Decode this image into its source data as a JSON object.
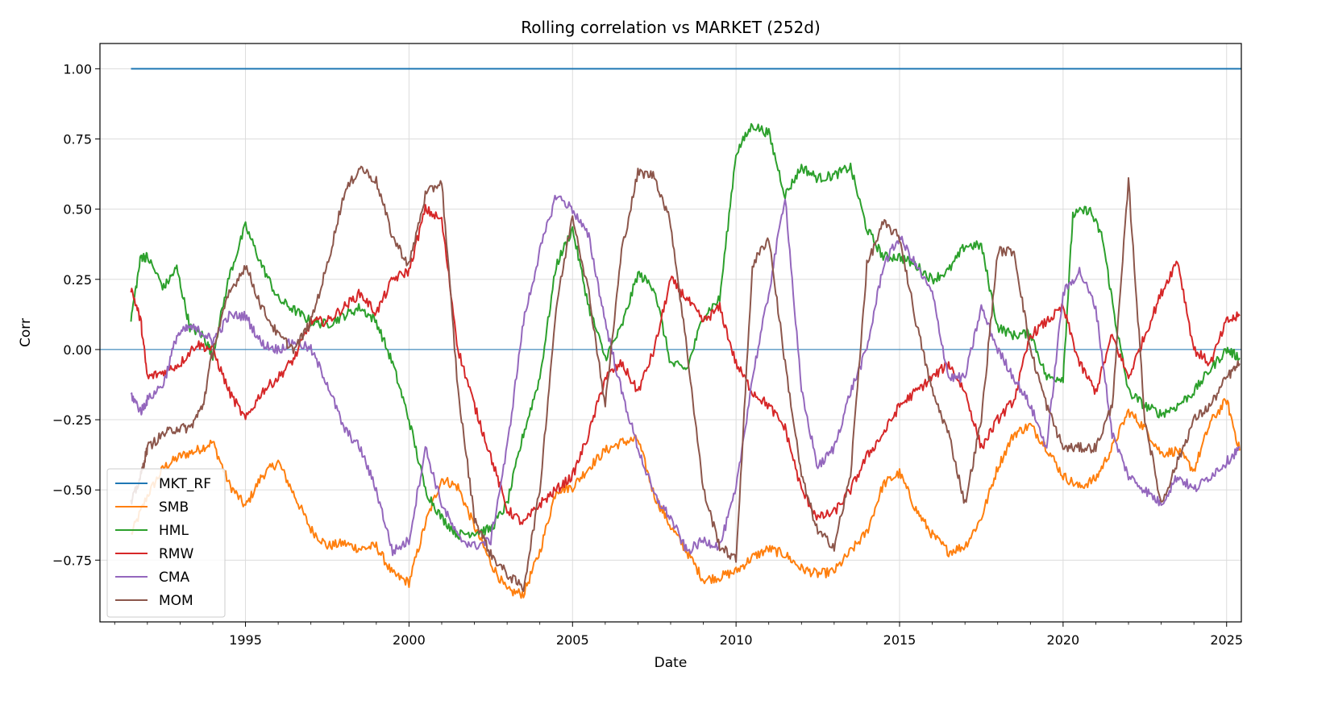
{
  "chart_data": {
    "type": "line",
    "title": "Rolling correlation vs MARKET (252d)",
    "xlabel": "Date",
    "ylabel": "Corr",
    "xlim": [
      1990.55,
      2025.45
    ],
    "ylim": [
      -0.97,
      1.09
    ],
    "x_ticks": [
      1995,
      2000,
      2005,
      2010,
      2015,
      2020,
      2025
    ],
    "y_ticks": [
      1.0,
      0.75,
      0.5,
      0.25,
      0.0,
      -0.25,
      -0.5,
      -0.75
    ],
    "y_tick_labels": [
      "1.00",
      "0.75",
      "0.50",
      "0.25",
      "0.00",
      "−0.25",
      "−0.50",
      "−0.75"
    ],
    "grid": true,
    "zero_line": true,
    "legend_position": "lower-left",
    "series": [
      {
        "name": "MKT_RF",
        "color": "#1f77b4",
        "x": [
          1991.5,
          2025.45
        ],
        "values": [
          1.0,
          1.0
        ]
      },
      {
        "name": "SMB",
        "color": "#ff7f0e",
        "x": [
          1991.5,
          1992.0,
          1992.5,
          1993.0,
          1993.5,
          1994.0,
          1994.5,
          1995.0,
          1995.5,
          1996.0,
          1996.5,
          1997.0,
          1997.5,
          1998.0,
          1998.5,
          1999.0,
          1999.5,
          2000.0,
          2000.5,
          2001.0,
          2001.5,
          2002.0,
          2002.5,
          2003.0,
          2003.5,
          2004.0,
          2004.5,
          2005.0,
          2005.5,
          2006.0,
          2006.5,
          2007.0,
          2007.5,
          2008.0,
          2008.5,
          2009.0,
          2009.5,
          2010.0,
          2010.5,
          2011.0,
          2011.5,
          2012.0,
          2012.5,
          2013.0,
          2013.5,
          2014.0,
          2014.5,
          2015.0,
          2015.5,
          2016.0,
          2016.5,
          2017.0,
          2017.5,
          2018.0,
          2018.5,
          2019.0,
          2019.5,
          2020.0,
          2020.5,
          2021.0,
          2021.5,
          2022.0,
          2022.5,
          2023.0,
          2023.5,
          2024.0,
          2024.5,
          2025.0,
          2025.4
        ],
        "values": [
          -0.66,
          -0.52,
          -0.42,
          -0.38,
          -0.36,
          -0.33,
          -0.48,
          -0.56,
          -0.45,
          -0.4,
          -0.52,
          -0.64,
          -0.7,
          -0.69,
          -0.71,
          -0.7,
          -0.8,
          -0.83,
          -0.62,
          -0.46,
          -0.49,
          -0.63,
          -0.76,
          -0.86,
          -0.87,
          -0.72,
          -0.5,
          -0.49,
          -0.42,
          -0.36,
          -0.33,
          -0.32,
          -0.52,
          -0.63,
          -0.72,
          -0.82,
          -0.81,
          -0.79,
          -0.74,
          -0.71,
          -0.73,
          -0.78,
          -0.8,
          -0.79,
          -0.72,
          -0.65,
          -0.48,
          -0.44,
          -0.57,
          -0.66,
          -0.72,
          -0.7,
          -0.6,
          -0.42,
          -0.3,
          -0.27,
          -0.35,
          -0.45,
          -0.49,
          -0.46,
          -0.35,
          -0.22,
          -0.28,
          -0.37,
          -0.36,
          -0.43,
          -0.26,
          -0.18,
          -0.36
        ]
      },
      {
        "name": "HML",
        "color": "#2ca02c",
        "x": [
          1991.5,
          1991.8,
          1992.0,
          1992.5,
          1992.9,
          1993.3,
          1993.7,
          1994.0,
          1994.5,
          1995.0,
          1995.5,
          1996.0,
          1996.5,
          1997.0,
          1997.5,
          1998.0,
          1998.5,
          1999.0,
          1999.5,
          2000.0,
          2000.5,
          2001.0,
          2001.5,
          2002.0,
          2002.5,
          2003.0,
          2003.5,
          2004.0,
          2004.5,
          2005.0,
          2005.5,
          2006.0,
          2006.5,
          2007.0,
          2007.5,
          2008.0,
          2008.5,
          2009.0,
          2009.5,
          2010.0,
          2010.5,
          2011.0,
          2011.5,
          2012.0,
          2012.5,
          2013.0,
          2013.5,
          2014.0,
          2014.5,
          2015.0,
          2015.5,
          2016.0,
          2016.5,
          2017.0,
          2017.5,
          2018.0,
          2018.5,
          2019.0,
          2019.5,
          2020.0,
          2020.3,
          2020.8,
          2021.2,
          2021.6,
          2022.0,
          2022.5,
          2023.0,
          2023.5,
          2024.0,
          2024.5,
          2025.0,
          2025.4
        ],
        "values": [
          0.11,
          0.33,
          0.33,
          0.22,
          0.29,
          0.08,
          0.05,
          -0.02,
          0.26,
          0.44,
          0.3,
          0.18,
          0.14,
          0.1,
          0.09,
          0.12,
          0.15,
          0.1,
          -0.05,
          -0.25,
          -0.5,
          -0.6,
          -0.66,
          -0.65,
          -0.64,
          -0.55,
          -0.3,
          -0.1,
          0.3,
          0.43,
          0.15,
          -0.03,
          0.08,
          0.27,
          0.22,
          -0.05,
          -0.07,
          0.12,
          0.18,
          0.7,
          0.8,
          0.77,
          0.55,
          0.65,
          0.61,
          0.62,
          0.65,
          0.43,
          0.33,
          0.33,
          0.3,
          0.25,
          0.28,
          0.37,
          0.37,
          0.08,
          0.05,
          0.06,
          -0.1,
          -0.1,
          0.48,
          0.5,
          0.4,
          0.1,
          -0.15,
          -0.2,
          -0.23,
          -0.2,
          -0.15,
          -0.07,
          0.0,
          -0.03
        ]
      },
      {
        "name": "RMW",
        "color": "#d62728",
        "x": [
          1991.5,
          1991.8,
          1992.0,
          1992.5,
          1993.0,
          1993.5,
          1994.0,
          1994.5,
          1995.0,
          1995.5,
          1996.0,
          1996.5,
          1997.0,
          1997.5,
          1998.0,
          1998.5,
          1999.0,
          1999.5,
          2000.0,
          2000.5,
          2001.0,
          2001.5,
          2002.0,
          2002.5,
          2003.0,
          2003.5,
          2004.0,
          2004.5,
          2005.0,
          2005.5,
          2006.0,
          2006.5,
          2007.0,
          2007.5,
          2008.0,
          2008.5,
          2009.0,
          2009.5,
          2010.0,
          2010.5,
          2011.0,
          2011.5,
          2012.0,
          2012.5,
          2013.0,
          2013.5,
          2014.0,
          2014.5,
          2015.0,
          2015.5,
          2016.0,
          2016.5,
          2017.0,
          2017.5,
          2018.0,
          2018.5,
          2019.0,
          2019.5,
          2020.0,
          2020.5,
          2021.0,
          2021.5,
          2022.0,
          2022.5,
          2023.0,
          2023.5,
          2024.0,
          2024.5,
          2025.0,
          2025.4
        ],
        "values": [
          0.22,
          0.1,
          -0.1,
          -0.08,
          -0.05,
          0.02,
          0.0,
          -0.15,
          -0.25,
          -0.15,
          -0.1,
          -0.03,
          0.1,
          0.1,
          0.15,
          0.2,
          0.13,
          0.25,
          0.28,
          0.5,
          0.46,
          0.0,
          -0.2,
          -0.38,
          -0.57,
          -0.62,
          -0.55,
          -0.5,
          -0.45,
          -0.3,
          -0.1,
          -0.05,
          -0.15,
          0.0,
          0.25,
          0.18,
          0.1,
          0.15,
          -0.05,
          -0.15,
          -0.2,
          -0.28,
          -0.5,
          -0.6,
          -0.58,
          -0.5,
          -0.38,
          -0.3,
          -0.2,
          -0.15,
          -0.1,
          -0.05,
          -0.15,
          -0.35,
          -0.25,
          -0.18,
          0.05,
          0.1,
          0.15,
          -0.05,
          -0.15,
          0.05,
          -0.1,
          0.05,
          0.2,
          0.32,
          0.0,
          -0.05,
          0.1,
          0.12
        ]
      },
      {
        "name": "CMA",
        "color": "#9467bd",
        "x": [
          1991.5,
          1991.8,
          1992.0,
          1992.5,
          1992.9,
          1993.3,
          1993.7,
          1994.0,
          1994.5,
          1995.0,
          1995.5,
          1996.0,
          1996.5,
          1997.0,
          1997.5,
          1998.0,
          1998.5,
          1999.0,
          1999.5,
          2000.0,
          2000.5,
          2001.0,
          2001.5,
          2002.0,
          2002.5,
          2003.0,
          2003.5,
          2004.0,
          2004.5,
          2005.0,
          2005.5,
          2006.0,
          2006.5,
          2007.0,
          2007.5,
          2008.0,
          2008.5,
          2009.0,
          2009.5,
          2010.0,
          2010.5,
          2011.0,
          2011.5,
          2012.0,
          2012.5,
          2013.0,
          2013.5,
          2014.0,
          2014.5,
          2015.0,
          2015.5,
          2016.0,
          2016.5,
          2017.0,
          2017.5,
          2018.0,
          2018.5,
          2019.0,
          2019.5,
          2020.0,
          2020.5,
          2021.0,
          2021.5,
          2022.0,
          2022.5,
          2023.0,
          2023.5,
          2024.0,
          2024.5,
          2025.0,
          2025.4
        ],
        "values": [
          -0.16,
          -0.22,
          -0.18,
          -0.12,
          0.05,
          0.08,
          0.06,
          0.03,
          0.12,
          0.12,
          0.02,
          0.0,
          0.03,
          0.0,
          -0.12,
          -0.28,
          -0.35,
          -0.5,
          -0.72,
          -0.68,
          -0.35,
          -0.55,
          -0.67,
          -0.7,
          -0.68,
          -0.35,
          0.1,
          0.35,
          0.55,
          0.5,
          0.4,
          0.1,
          -0.15,
          -0.35,
          -0.52,
          -0.6,
          -0.72,
          -0.68,
          -0.7,
          -0.5,
          -0.1,
          0.2,
          0.55,
          -0.15,
          -0.42,
          -0.35,
          -0.15,
          0.0,
          0.3,
          0.4,
          0.3,
          0.2,
          -0.1,
          -0.1,
          0.15,
          0.0,
          -0.1,
          -0.2,
          -0.35,
          0.2,
          0.28,
          0.15,
          -0.3,
          -0.45,
          -0.5,
          -0.55,
          -0.45,
          -0.5,
          -0.45,
          -0.4,
          -0.35
        ]
      },
      {
        "name": "MOM",
        "color": "#8c564b",
        "x": [
          1991.5,
          1991.8,
          1992.0,
          1992.5,
          1992.9,
          1993.3,
          1993.7,
          1994.0,
          1994.5,
          1995.0,
          1995.5,
          1996.0,
          1996.5,
          1997.0,
          1997.5,
          1998.0,
          1998.5,
          1999.0,
          1999.5,
          2000.0,
          2000.5,
          2001.0,
          2001.5,
          2002.0,
          2002.5,
          2003.0,
          2003.5,
          2004.0,
          2004.5,
          2005.0,
          2005.5,
          2006.0,
          2006.5,
          2007.0,
          2007.5,
          2008.0,
          2008.5,
          2009.0,
          2009.5,
          2010.0,
          2010.5,
          2011.0,
          2011.5,
          2012.0,
          2012.5,
          2013.0,
          2013.5,
          2014.0,
          2014.5,
          2015.0,
          2015.5,
          2016.0,
          2016.5,
          2017.0,
          2017.5,
          2018.0,
          2018.5,
          2019.0,
          2019.5,
          2020.0,
          2020.5,
          2021.0,
          2021.5,
          2022.0,
          2022.5,
          2023.0,
          2023.5,
          2024.0,
          2024.5,
          2025.0,
          2025.4
        ],
        "values": [
          -0.55,
          -0.45,
          -0.35,
          -0.3,
          -0.28,
          -0.28,
          -0.2,
          0.0,
          0.2,
          0.3,
          0.15,
          0.05,
          0.0,
          0.1,
          0.3,
          0.55,
          0.65,
          0.6,
          0.4,
          0.3,
          0.55,
          0.6,
          -0.15,
          -0.6,
          -0.73,
          -0.8,
          -0.85,
          -0.5,
          0.15,
          0.48,
          0.2,
          -0.2,
          0.35,
          0.63,
          0.62,
          0.45,
          0.0,
          -0.5,
          -0.7,
          -0.75,
          0.3,
          0.4,
          -0.05,
          -0.45,
          -0.65,
          -0.7,
          -0.45,
          0.3,
          0.45,
          0.4,
          0.1,
          -0.15,
          -0.3,
          -0.55,
          -0.25,
          0.35,
          0.35,
          0.0,
          -0.2,
          -0.35,
          -0.35,
          -0.35,
          -0.2,
          0.6,
          -0.25,
          -0.55,
          -0.4,
          -0.25,
          -0.2,
          -0.1,
          -0.05
        ]
      }
    ]
  }
}
